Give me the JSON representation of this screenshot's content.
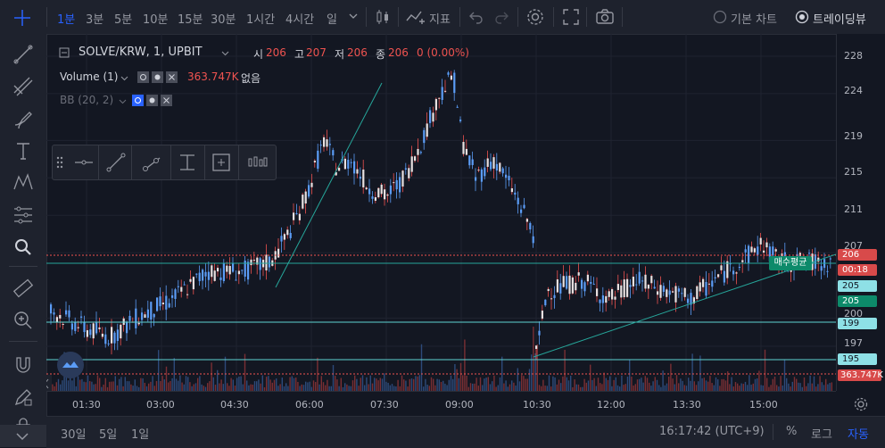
{
  "topbar": {
    "intervals": [
      "1분",
      "3분",
      "5분",
      "10분",
      "15분",
      "30분",
      "1시간",
      "4시간",
      "일"
    ],
    "indicators_label": "지표",
    "chart_mode_basic": "기본 차트",
    "chart_mode_tv": "트레이딩뷰"
  },
  "legend": {
    "symbol": "SOLVE/KRW, 1, UPBIT",
    "open_label": "시",
    "open_val": "206",
    "high_label": "고",
    "high_val": "207",
    "low_label": "저",
    "low_val": "206",
    "close_label": "종",
    "close_val": "206",
    "change": "0 (0.00%)",
    "volume_label": "Volume (1)",
    "volume_val": "363.747K",
    "volume_extra": "없음",
    "bb_label": "BB (20, 2)"
  },
  "price_axis": {
    "ticks": [
      "228",
      "224",
      "219",
      "215",
      "211",
      "207",
      "205",
      "200",
      "197"
    ],
    "badge_current": "206",
    "badge_countdown": "00:18",
    "badge_205a": "205",
    "badge_205b": "205",
    "badge_199": "199",
    "badge_195": "195",
    "badge_volume": "363.747K"
  },
  "time_axis": {
    "ticks": [
      "01:30",
      "03:00",
      "04:30",
      "06:00",
      "07:30",
      "09:00",
      "10:30",
      "12:00",
      "13:30",
      "15:00"
    ]
  },
  "avg_buy_label": "매수평균",
  "bottombar": {
    "ranges": [
      "30일",
      "5일",
      "1일"
    ],
    "clock": "16:17:42 (UTC+9)",
    "percent": "%",
    "log": "로그",
    "auto": "자동"
  },
  "colors": {
    "bg": "#131722",
    "up": "#ef5350",
    "down": "#5b9cf6",
    "accent": "#2962ff",
    "teal": "#26a69a",
    "cyan_line": "#5fd3d3"
  }
}
